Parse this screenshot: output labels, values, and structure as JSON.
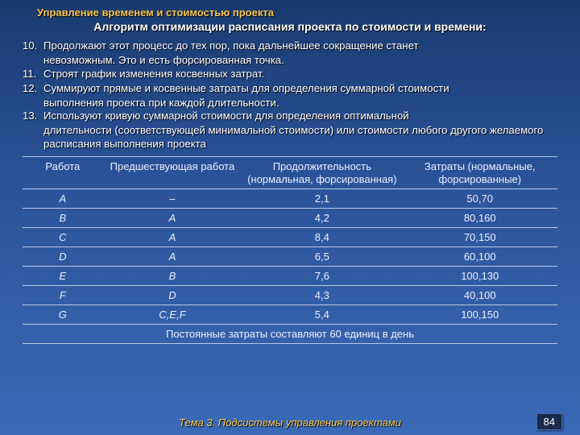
{
  "chapter": "Управление временем и стоимостью проекта",
  "subtitle": "Алгоритм оптимизации расписания проекта по стоимости и времени:",
  "items": [
    {
      "num": "10.",
      "text": "Продолжают этот процесс до тех пор, пока дальнейшее сокращение станет",
      "cont": "невозможным. Это и есть форсированная точка."
    },
    {
      "num": "11.",
      "text": "Строят график изменения косвенных затрат.",
      "cont": ""
    },
    {
      "num": "12.",
      "text": "Суммируют прямые и косвенные затраты для определения суммарной стоимости",
      "cont": "выполнения проекта при каждой длительности."
    },
    {
      "num": "13.",
      "text": "Используют кривую суммарной стоимости для определения оптимальной",
      "cont": "длительности (соответствующей минимальной стоимости) или стоимости любого другого желаемого расписания выполнения проекта"
    }
  ],
  "table": {
    "columns": [
      "Работа",
      "Предшествующая работа",
      "Продолжительность (нормальная, форсированная)",
      "Затраты (нормальные, форсированные)"
    ],
    "col_widths": [
      "15%",
      "26%",
      "30%",
      "29%"
    ],
    "rows": [
      [
        "A",
        "–",
        "2,1",
        "50,70"
      ],
      [
        "B",
        "A",
        "4,2",
        "80,160"
      ],
      [
        "C",
        "A",
        "8,4",
        "70,150"
      ],
      [
        "D",
        "A",
        "6,5",
        "60,100"
      ],
      [
        "E",
        "B",
        "7,6",
        "100,130"
      ],
      [
        "F",
        "D",
        "4,3",
        "40,100"
      ],
      [
        "G",
        "C,E,F",
        "5,4",
        "100,150"
      ]
    ],
    "footer": "Постоянные затраты составляют 60 единиц в день",
    "header_fontsize": 13,
    "cell_fontsize": 13,
    "border_color": "#b8c8e8",
    "text_color": "#eeeeff"
  },
  "footer_text": "Тема 3. Подсистемы управления проектами",
  "page_number": "84",
  "style": {
    "bg_gradient": [
      "#1a3a6e",
      "#2a5298",
      "#3a6ab8"
    ],
    "accent_color": "#f9c64a",
    "body_text_color": "#ffffff",
    "body_fontsize": 13.2,
    "chapter_fontsize": 13,
    "subtitle_fontsize": 14,
    "shadow": "1px 1px 1px #000"
  }
}
